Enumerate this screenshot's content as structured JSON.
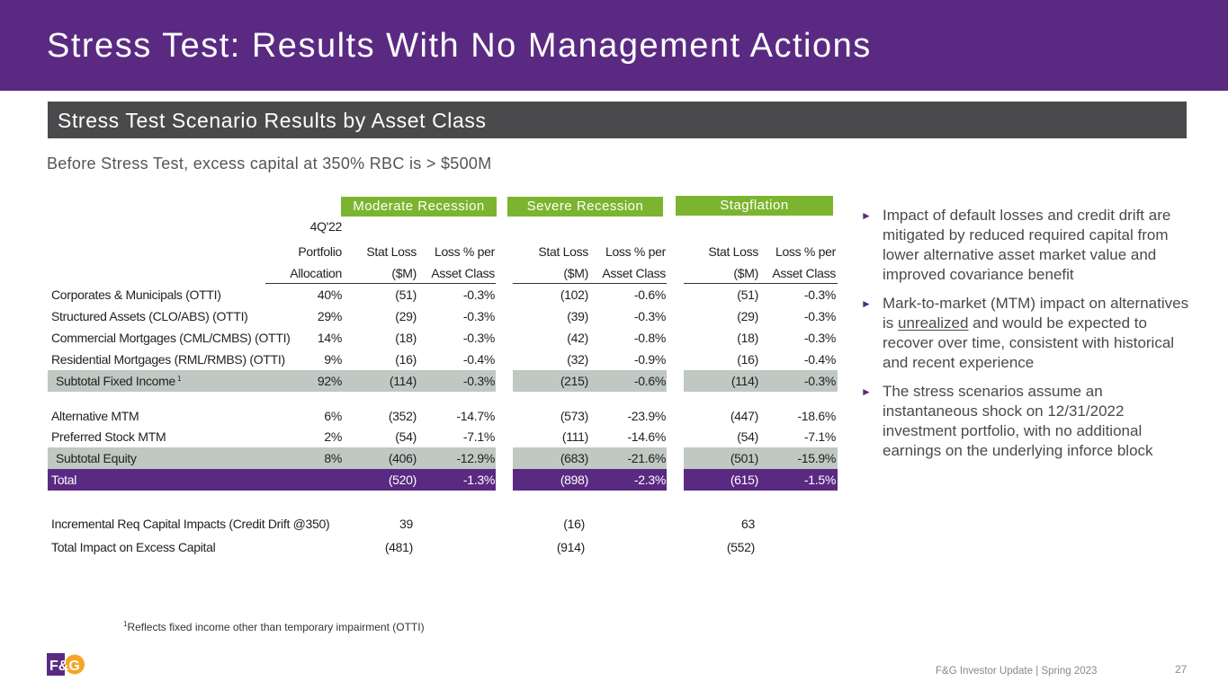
{
  "header": {
    "title": "Stress Test:  Results With No Management Actions"
  },
  "section": {
    "title": "Stress Test Scenario Results by Asset Class"
  },
  "subtitle": "Before Stress Test, excess capital at 350% RBC is > $500M",
  "scenarios": [
    "Moderate Recession",
    "Severe Recession",
    "Stagflation"
  ],
  "table": {
    "header_rows": [
      [
        "",
        "4Q'22",
        "",
        "",
        "",
        "",
        "",
        ""
      ],
      [
        "",
        "Portfolio",
        "Stat Loss",
        "Loss % per",
        "Stat Loss",
        "Loss % per",
        "Stat Loss",
        "Loss % per"
      ],
      [
        "",
        "Allocation",
        "($M)",
        "Asset Class",
        "($M)",
        "Asset Class",
        "($M)",
        "Asset Class"
      ]
    ],
    "rows": [
      {
        "style": "normal",
        "cells": [
          "Corporates & Municipals (OTTI)",
          "40%",
          "(51)",
          "-0.3%",
          "(102)",
          "-0.6%",
          "(51)",
          "-0.3%"
        ]
      },
      {
        "style": "normal",
        "cells": [
          "Structured Assets (CLO/ABS) (OTTI)",
          "29%",
          "(29)",
          "-0.3%",
          "(39)",
          "-0.3%",
          "(29)",
          "-0.3%"
        ]
      },
      {
        "style": "normal",
        "cells": [
          "Commercial Mortgages (CML/CMBS) (OTTI)",
          "14%",
          "(18)",
          "-0.3%",
          "(42)",
          "-0.8%",
          "(18)",
          "-0.3%"
        ]
      },
      {
        "style": "normal",
        "cells": [
          "Residential Mortgages (RML/RMBS) (OTTI)",
          "9%",
          "(16)",
          "-0.4%",
          "(32)",
          "-0.9%",
          "(16)",
          "-0.4%"
        ]
      },
      {
        "style": "subtotal",
        "cells": [
          "Subtotal Fixed Income",
          "92%",
          "(114)",
          "-0.3%",
          "(215)",
          "-0.6%",
          "(114)",
          "-0.3%"
        ],
        "sup": "1"
      },
      {
        "style": "normal",
        "cells": [
          "Alternative MTM",
          "6%",
          "(352)",
          "-14.7%",
          "(573)",
          "-23.9%",
          "(447)",
          "-18.6%"
        ]
      },
      {
        "style": "normal",
        "cells": [
          "Preferred Stock MTM",
          "2%",
          "(54)",
          "-7.1%",
          "(111)",
          "-14.6%",
          "(54)",
          "-7.1%"
        ]
      },
      {
        "style": "subtotal",
        "cells": [
          "Subtotal Equity",
          "8%",
          "(406)",
          "-12.9%",
          "(683)",
          "-21.6%",
          "(501)",
          "-15.9%"
        ]
      },
      {
        "style": "total",
        "cells": [
          "Total",
          "",
          "(520)",
          "-1.3%",
          "(898)",
          "-2.3%",
          "(615)",
          "-1.5%"
        ]
      },
      {
        "style": "impact",
        "cells": [
          "Incremental Req Capital Impacts (Credit Drift @350)",
          "",
          "39",
          "",
          "(16)",
          "",
          "63",
          ""
        ]
      },
      {
        "style": "impact",
        "cells": [
          "Total Impact on Excess Capital",
          "",
          "(481)",
          "",
          "(914)",
          "",
          "(552)",
          ""
        ]
      }
    ]
  },
  "bullets": [
    {
      "pre": "Impact of default losses and credit drift are mitigated by reduced required capital from lower alternative asset market value and improved covariance benefit",
      "underline": "",
      "post": ""
    },
    {
      "pre": "Mark-to-market (MTM) impact on alternatives is ",
      "underline": "unrealized",
      "post": " and would be expected to recover over time, consistent with historical and recent experience"
    },
    {
      "pre": "The stress scenarios assume an instantaneous shock on 12/31/2022 investment portfolio, with no additional earnings on the underlying inforce block",
      "underline": "",
      "post": ""
    }
  ],
  "footnote": {
    "sup": "1",
    "text": "Reflects fixed income other than temporary impairment (OTTI)"
  },
  "logo_text": "F&G",
  "footer": {
    "text": "F&G Investor Update | Spring 2023",
    "page": "27"
  },
  "colors": {
    "purple": "#5a2a82",
    "green": "#7bb52f",
    "gray_band": "#bfc8c2",
    "dark_bar": "#4a4a4c"
  }
}
